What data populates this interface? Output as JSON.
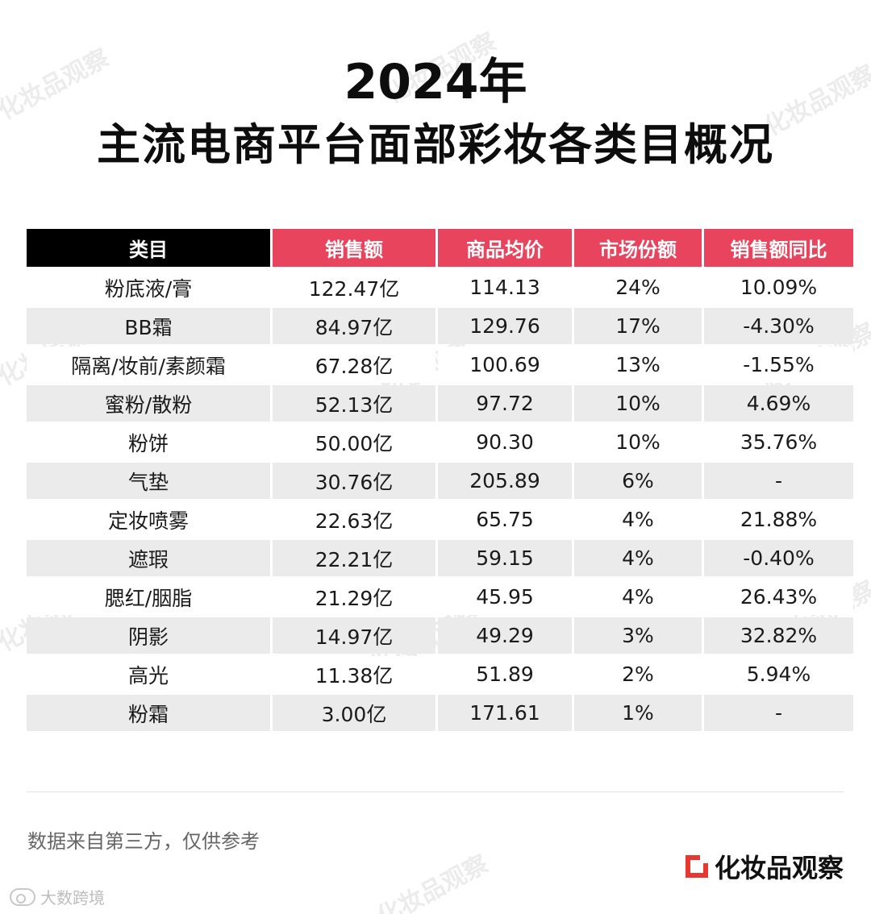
{
  "title_line1": "2024年",
  "title_line2": "主流电商平台面部彩妆各类目概况",
  "watermark": "化妆品观察",
  "table": {
    "headers": [
      "类目",
      "销售额",
      "商品均价",
      "市场份额",
      "销售额同比"
    ],
    "rows": [
      [
        "粉底液/膏",
        "122.47亿",
        "114.13",
        "24%",
        "10.09%"
      ],
      [
        "BB霜",
        "84.97亿",
        "129.76",
        "17%",
        "-4.30%"
      ],
      [
        "隔离/妆前/素颜霜",
        "67.28亿",
        "100.69",
        "13%",
        "-1.55%"
      ],
      [
        "蜜粉/散粉",
        "52.13亿",
        "97.72",
        "10%",
        "4.69%"
      ],
      [
        "粉饼",
        "50.00亿",
        "90.30",
        "10%",
        "35.76%"
      ],
      [
        "气垫",
        "30.76亿",
        "205.89",
        "6%",
        "-"
      ],
      [
        "定妆喷雾",
        "22.63亿",
        "65.75",
        "4%",
        "21.88%"
      ],
      [
        "遮瑕",
        "22.21亿",
        "59.15",
        "4%",
        "-0.40%"
      ],
      [
        "腮红/胭脂",
        "21.29亿",
        "45.95",
        "4%",
        "26.43%"
      ],
      [
        "阴影",
        "14.97亿",
        "49.29",
        "3%",
        "32.82%"
      ],
      [
        "高光",
        "11.38亿",
        "51.89",
        "2%",
        "5.94%"
      ],
      [
        "粉霜",
        "3.00亿",
        "171.61",
        "1%",
        "-"
      ]
    ]
  },
  "footnote": "数据来自第三方，仅供参考",
  "brand": {
    "name": "化妆品观察",
    "icon": "brand-logo-icon",
    "accent": "#e8372f"
  },
  "source": {
    "icon": "wechat-account-icon",
    "name": "大数跨境"
  },
  "colors": {
    "header_bg": "#e8445d",
    "first_header_bg": "#000000",
    "alt_row_bg": "#ebebeb"
  }
}
